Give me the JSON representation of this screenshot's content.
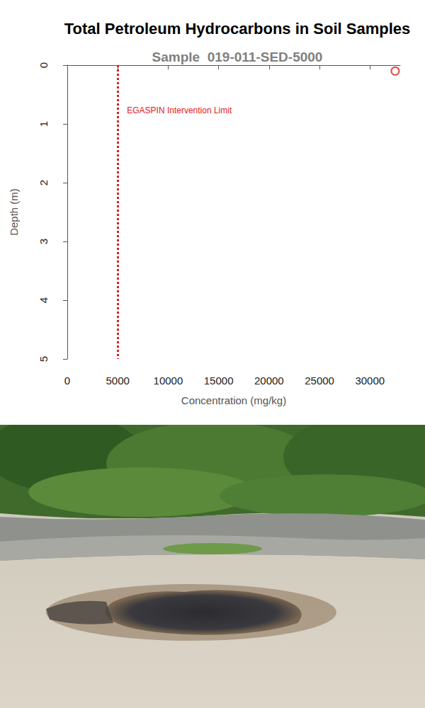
{
  "chart_data": {
    "type": "scatter",
    "title": "Total Petroleum Hydrocarbons in Soil Samples",
    "subtitle": "Sample  019-011-SED-5000",
    "x_label": "Concentration (mg/kg)",
    "y_label": "Depth (m)",
    "x": [
      32500
    ],
    "y": [
      0.1
    ],
    "color": "#e41a1c",
    "marker": "circle-open",
    "xlim": [
      0,
      33000
    ],
    "xticks": [
      0,
      5000,
      10000,
      15000,
      20000,
      25000,
      30000
    ],
    "ylim": [
      5,
      0
    ],
    "yticks": [
      0,
      1,
      2,
      3,
      4,
      5
    ],
    "grid": false,
    "annotations": [
      {
        "text": "EGASPIN Intervention Limit",
        "x": 5000,
        "color": "#e41a1c",
        "line_style": "dotted"
      }
    ]
  }
}
